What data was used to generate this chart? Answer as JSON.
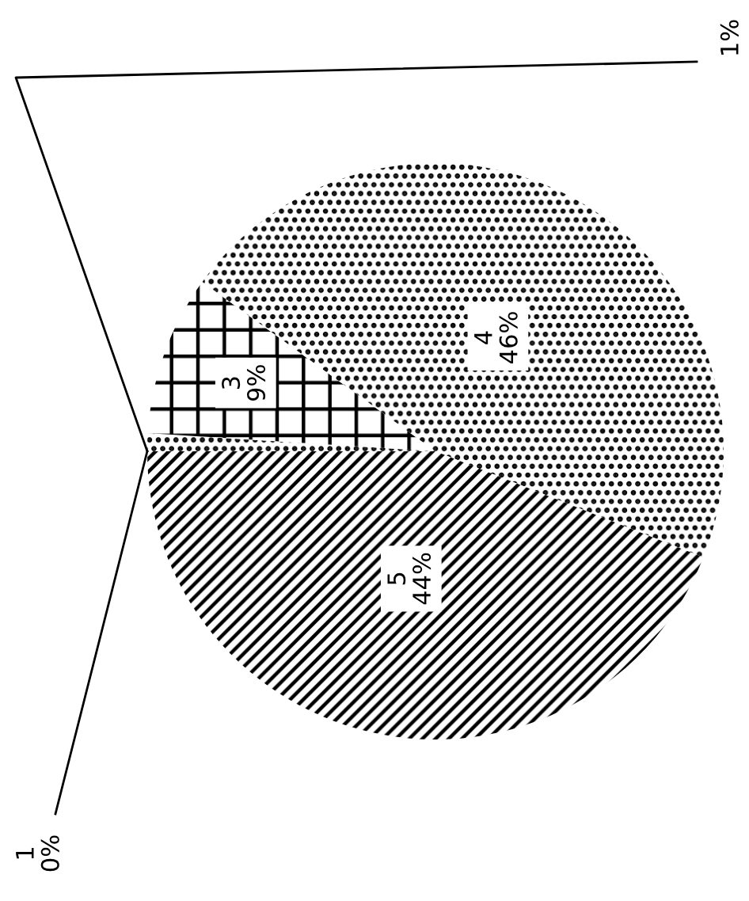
{
  "chart_data": {
    "type": "pie",
    "categories": [
      "1",
      null,
      "3",
      "4",
      "5"
    ],
    "values": [
      0,
      1,
      9,
      46,
      44
    ],
    "value_labels": [
      "0%",
      "1%",
      "9%",
      "46%",
      "44%"
    ]
  }
}
